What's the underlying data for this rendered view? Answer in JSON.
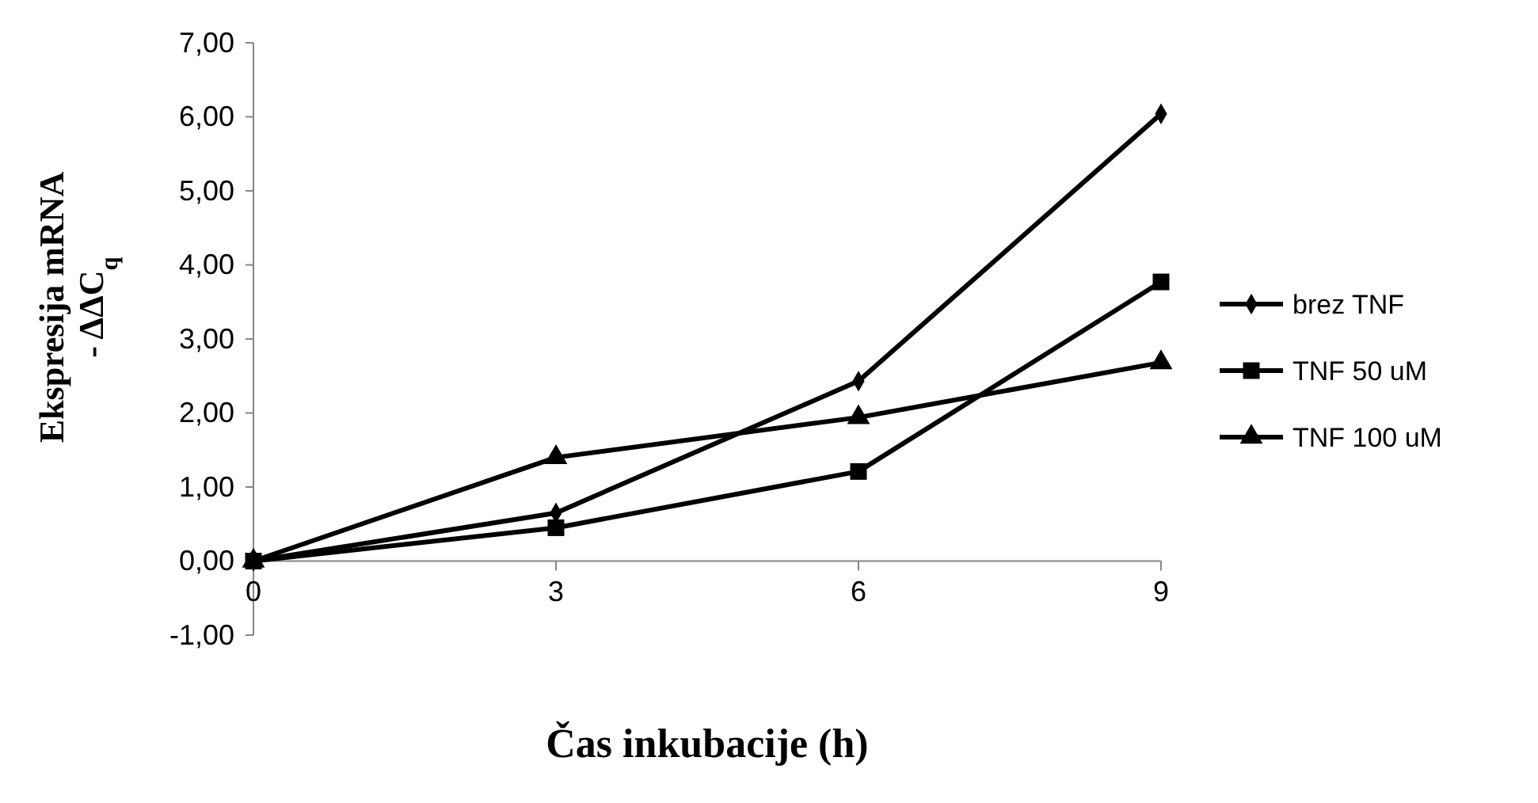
{
  "chart_data": {
    "type": "line",
    "xlabel": "Čas inkubacije (h)",
    "ylabel": "Ekspresija mRNA\n- ΔΔC$_{q}$",
    "x": [
      0,
      3,
      6,
      9
    ],
    "xlim": [
      0,
      9
    ],
    "xticks": [
      0,
      3,
      6,
      9
    ],
    "ylim": [
      -1,
      7
    ],
    "yticks": [
      {
        "value": -1,
        "label": "-1,00"
      },
      {
        "value": 0,
        "label": "0,00"
      },
      {
        "value": 1,
        "label": "1,00"
      },
      {
        "value": 2,
        "label": "2,00"
      },
      {
        "value": 3,
        "label": "3,00"
      },
      {
        "value": 4,
        "label": "4,00"
      },
      {
        "value": 5,
        "label": "5,00"
      },
      {
        "value": 6,
        "label": "6,00"
      },
      {
        "value": 7,
        "label": "7,00"
      }
    ],
    "grid": false,
    "legend": "right",
    "line_style": "solid",
    "series": [
      {
        "name": "brez TNF",
        "color": "#000000",
        "marker": "diamond",
        "values": [
          0,
          0.65,
          2.43,
          6.04
        ]
      },
      {
        "name": "TNF 50 uM",
        "color": "#000000",
        "marker": "square",
        "values": [
          0,
          0.45,
          1.21,
          3.77
        ]
      },
      {
        "name": "TNF 100 uM",
        "color": "#000000",
        "marker": "triangle",
        "values": [
          0,
          1.4,
          1.94,
          2.68
        ]
      }
    ]
  }
}
